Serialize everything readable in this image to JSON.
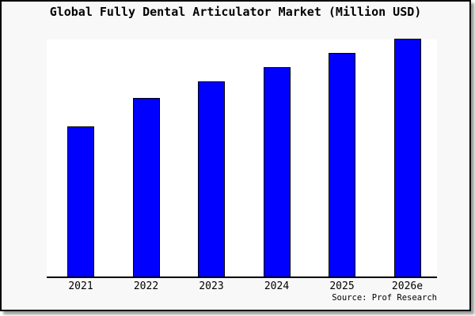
{
  "window": {
    "title": "Global Fully Dental Articulator Market (Million USD)"
  },
  "chart_data": {
    "type": "bar",
    "title": "Global Fully Dental Articulator Market (Million USD)",
    "categories": [
      "2021",
      "2022",
      "2023",
      "2024",
      "2025",
      "2026e"
    ],
    "values": [
      63,
      75,
      82,
      88,
      94,
      100
    ],
    "values_note": "No y-axis scale is shown in the image; values are relative bar heights as a percentage of the tallest (2026e) bar.",
    "xlabel": "",
    "ylabel": "",
    "ylim": [
      0,
      100
    ],
    "grid": false,
    "legend": null,
    "source": "Source: Prof Research",
    "colors": {
      "bar_fill": "#0000ff",
      "bar_border": "#000000",
      "frame_background": "#f8f8f8",
      "plot_background": "#ffffff",
      "frame_border": "#000000",
      "shadow": "#9e9e9e",
      "text": "#000000"
    }
  }
}
